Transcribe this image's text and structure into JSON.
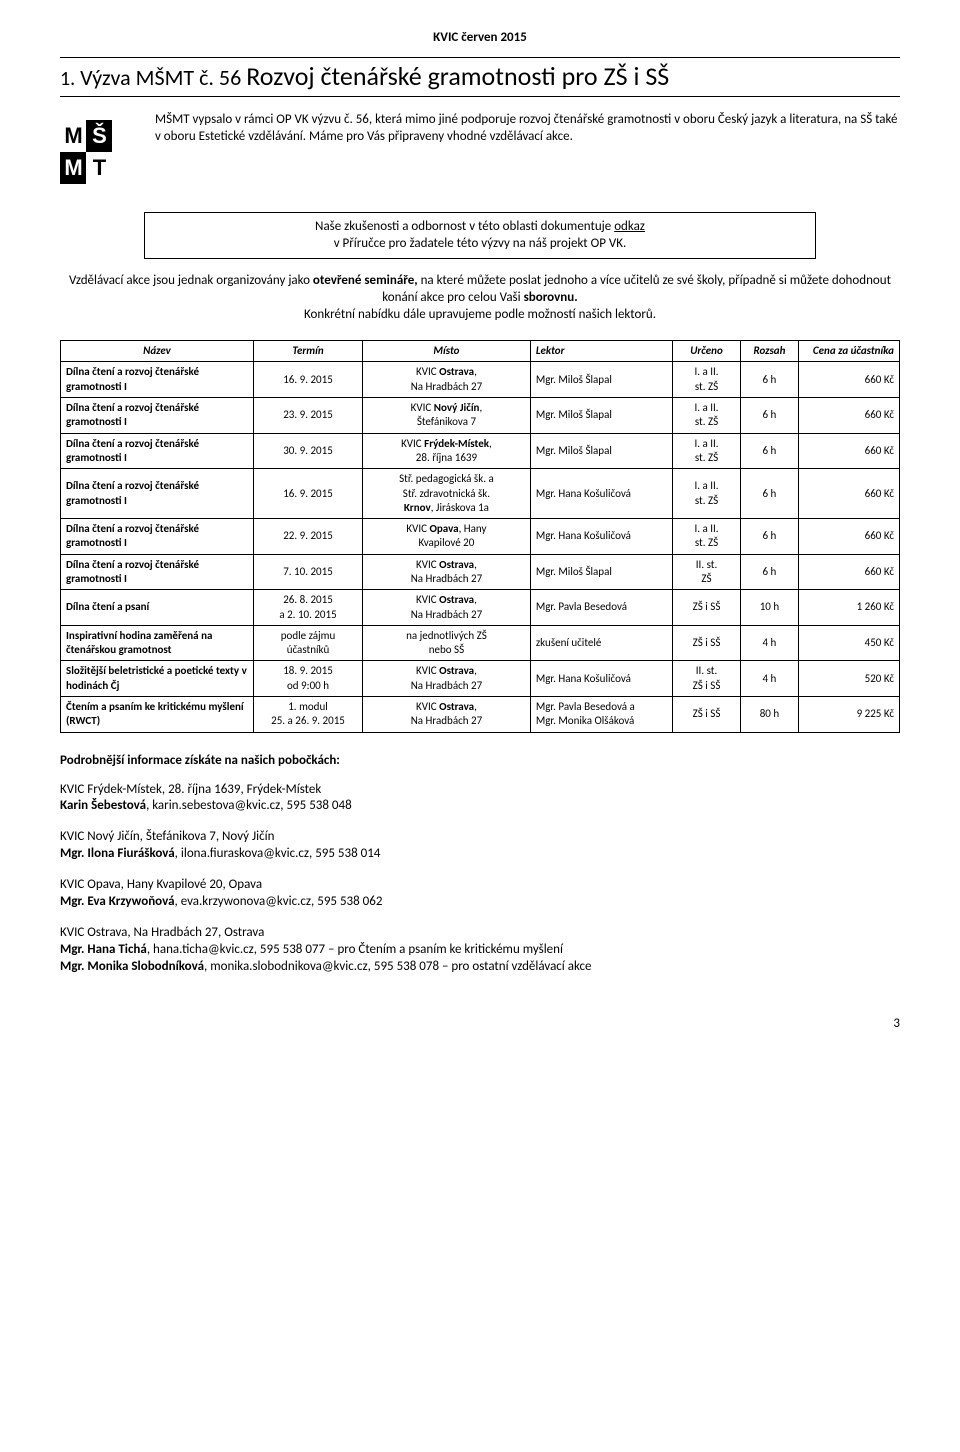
{
  "header": "KVIC červen 2015",
  "heading_num": "1.",
  "heading_prefix": "Výzva MŠMT č. 56 ",
  "heading_big": "Rozvoj čtenářské gramotnosti pro ZŠ i SŠ",
  "logo": {
    "r1": [
      "M",
      "Š"
    ],
    "r2": [
      "M",
      "T"
    ]
  },
  "intro": "MŠMT vypsalo v rámci OP VK výzvu č. 56, která mimo jiné podporuje rozvoj čtenářské gramotnosti v oboru Český jazyk a literatura, na SŠ také v oboru Estetické vzdělávání. Máme pro Vás připraveny vhodné vzdělávací akce.",
  "box_line1": "Naše zkušenosti a odbornost v této oblasti dokumentuje ",
  "box_link": "odkaz",
  "box_line2": "v Příručce pro žadatele této výzvy na náš projekt OP VK.",
  "para": "Vzdělávací akce jsou jednak organizovány jako <b>otevřené semináře,</b> na které můžete poslat jednoho a více učitelů ze své školy, případně si můžete dohodnout konání akce pro celou Vaši <b>sborovnu.</b><br>Konkrétní nabídku dále upravujeme podle možností našich lektorů.",
  "columns": [
    "Název",
    "Termín",
    "Místo",
    "Lektor",
    "Určeno",
    "Rozsah",
    "Cena za účastníka"
  ],
  "rows": [
    {
      "nazev": "<b>Dílna čtení a rozvoj čtenářské gramotnosti I</b>",
      "termin": "16. 9. 2015",
      "misto": "KVIC <b>Ostrava</b>,<br>Na Hradbách 27",
      "lektor": "Mgr. Miloš Šlapal",
      "urceno": "I. a II.<br>st. ZŠ",
      "rozsah": "6 h",
      "cena": "660 Kč"
    },
    {
      "nazev": "<b>Dílna čtení a rozvoj čtenářské gramotnosti I</b>",
      "termin": "23. 9. 2015",
      "misto": "KVIC <b>Nový Jičín</b>,<br>Štefánikova 7",
      "lektor": "Mgr. Miloš Šlapal",
      "urceno": "I. a II.<br>st. ZŠ",
      "rozsah": "6 h",
      "cena": "660 Kč"
    },
    {
      "nazev": "<b>Dílna čtení a rozvoj čtenářské gramotnosti I</b>",
      "termin": "30. 9. 2015",
      "misto": "KVIC <b>Frýdek-Místek</b>,<br>28. října 1639",
      "lektor": "Mgr. Miloš Šlapal",
      "urceno": "I. a II.<br>st. ZŠ",
      "rozsah": "6 h",
      "cena": "660 Kč"
    },
    {
      "nazev": "<b>Dílna čtení a rozvoj čtenářské gramotnosti I</b>",
      "termin": "16. 9. 2015",
      "misto": "Stř. pedagogická šk. a<br>Stř. zdravotnická šk.<br><b>Krnov</b>, Jiráskova 1a",
      "lektor": "Mgr. Hana Košuličová",
      "urceno": "I. a II.<br>st. ZŠ",
      "rozsah": "6 h",
      "cena": "660 Kč"
    },
    {
      "nazev": "<b>Dílna čtení a rozvoj čtenářské gramotnosti I</b>",
      "termin": "22. 9. 2015",
      "misto": "KVIC <b>Opava</b>, Hany<br>Kvapilové 20",
      "lektor": "Mgr. Hana Košuličová",
      "urceno": "I. a II.<br>st. ZŠ",
      "rozsah": "6 h",
      "cena": "660 Kč"
    },
    {
      "nazev": "<b>Dílna čtení a rozvoj čtenářské gramotnosti I</b>",
      "termin": "7. 10. 2015",
      "misto": "KVIC <b>Ostrava</b>,<br>Na Hradbách 27",
      "lektor": "Mgr. Miloš Šlapal",
      "urceno": "II. st.<br>ZŠ",
      "rozsah": "6 h",
      "cena": "660 Kč"
    },
    {
      "nazev": "<b>Dílna čtení a psaní</b>",
      "termin": "26. 8. 2015<br>a 2. 10. 2015",
      "misto": "KVIC <b>Ostrava</b>,<br>Na Hradbách 27",
      "lektor": "Mgr. Pavla Besedová",
      "urceno": "ZŠ i SŠ",
      "rozsah": "10 h",
      "cena": "1 260 Kč"
    },
    {
      "nazev": "<b>Inspirativní hodina zaměřená na čtenářskou gramotnost</b>",
      "termin": "podle zájmu<br>účastníků",
      "misto": "na jednotlivých ZŠ<br>nebo SŠ",
      "lektor": "zkušení učitelé",
      "urceno": "ZŠ i SŠ",
      "rozsah": "4 h",
      "cena": "450 Kč"
    },
    {
      "nazev": "<b>Složitější beletristické a poetické texty v hodinách Čj</b>",
      "termin": "18. 9. 2015<br>od 9:00 h",
      "misto": "KVIC <b>Ostrava</b>,<br>Na Hradbách 27",
      "lektor": "Mgr. Hana Košuličová",
      "urceno": "II. st.<br>ZŠ i SŠ",
      "rozsah": "4 h",
      "cena": "520 Kč"
    },
    {
      "nazev": "<b>Čtením a psaním ke kritickému myšlení (RWCT)</b>",
      "termin": "1. modul<br>25. a 26. 9. 2015",
      "misto": "KVIC <b>Ostrava</b>,<br>Na Hradbách 27",
      "lektor": "Mgr. Pavla Besedová a<br>Mgr. Monika Olšáková",
      "urceno": "ZŠ i SŠ",
      "rozsah": "80 h",
      "cena": "9 225 Kč"
    }
  ],
  "contacts_title": "Podrobnější informace získáte na našich pobočkách:",
  "contacts": [
    {
      "l1": "KVIC Frýdek-Místek, 28. října 1639, Frýdek-Místek",
      "l2": "<b>Karin Šebestová</b>, karin.sebestova@kvic.cz, 595 538 048"
    },
    {
      "l1": "KVIC Nový Jičín, Štefánikova 7, Nový Jičín",
      "l2": "<b>Mgr. Ilona Fiurášková</b>, ilona.fiuraskova@kvic.cz, 595 538 014"
    },
    {
      "l1": "KVIC Opava, Hany Kvapilové 20, Opava",
      "l2": "<b>Mgr. Eva Krzywoňová</b>, eva.krzywonova@kvic.cz, 595 538 062"
    },
    {
      "l1": "KVIC Ostrava, Na Hradbách 27, Ostrava",
      "l2": "<b>Mgr. Hana Tichá</b>, hana.ticha@kvic.cz, 595 538 077 – pro Čtením a psaním ke kritickému myšlení<br><b>Mgr. Monika Slobodníková</b>, monika.slobodnikova@kvic.cz, 595 538 078 – pro ostatní vzdělávací akce"
    }
  ],
  "page_num": "3"
}
